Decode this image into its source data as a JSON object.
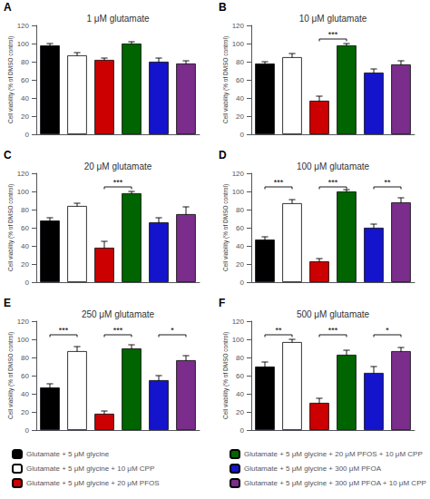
{
  "chart_data": [
    {
      "type": "bar",
      "title": "1 μM glutamate",
      "panel_label": "A",
      "ylabel": "Cell viability (% of DMSO control)",
      "ylim": [
        0,
        120
      ],
      "yticks": [
        0,
        20,
        40,
        60,
        80,
        100,
        120
      ],
      "grid": false,
      "tick_labels": "y",
      "series": [
        {
          "name": "Glutamate + 5 μM glycine",
          "color": "#000000",
          "values": [
            98
          ],
          "errors": [
            2
          ]
        },
        {
          "name": "Glutamate + 5 μM glycine + 10 μM CPP",
          "color": "#ffffff",
          "values": [
            87
          ],
          "errors": [
            3
          ]
        },
        {
          "name": "Glutamate + 5 μM glycine + 20 μM PFOS",
          "color": "#cc0000",
          "values": [
            82
          ],
          "errors": [
            2
          ]
        },
        {
          "name": "Glutamate + 5 μM glycine + 20 μM PFOS + 10 μM CPP",
          "color": "#006400",
          "values": [
            100
          ],
          "errors": [
            2
          ]
        },
        {
          "name": "Glutamate + 5 μM glycine + 300 μM PFOA",
          "color": "#1414cc",
          "values": [
            80
          ],
          "errors": [
            4
          ]
        },
        {
          "name": "Glutamate + 5 μM glycine + 300 μM PFOA + 10 μM CPP",
          "color": "#7b2d8b",
          "values": [
            78
          ],
          "errors": [
            3
          ]
        }
      ],
      "significance": []
    },
    {
      "type": "bar",
      "title": "10 μM glutamate",
      "panel_label": "B",
      "ylabel": "Cell viability (% of DMSO control)",
      "ylim": [
        0,
        120
      ],
      "yticks": [
        0,
        20,
        40,
        60,
        80,
        100,
        120
      ],
      "grid": false,
      "tick_labels": "y",
      "series": [
        {
          "name": "Glutamate + 5 μM glycine",
          "color": "#000000",
          "values": [
            78
          ],
          "errors": [
            2
          ]
        },
        {
          "name": "Glutamate + 5 μM glycine + 10 μM CPP",
          "color": "#ffffff",
          "values": [
            85
          ],
          "errors": [
            4
          ]
        },
        {
          "name": "Glutamate + 5 μM glycine + 20 μM PFOS",
          "color": "#cc0000",
          "values": [
            37
          ],
          "errors": [
            5
          ]
        },
        {
          "name": "Glutamate + 5 μM glycine + 20 μM PFOS + 10 μM CPP",
          "color": "#006400",
          "values": [
            98
          ],
          "errors": [
            2
          ]
        },
        {
          "name": "Glutamate + 5 μM glycine + 300 μM PFOA",
          "color": "#1414cc",
          "values": [
            68
          ],
          "errors": [
            4
          ]
        },
        {
          "name": "Glutamate + 5 μM glycine + 300 μM PFOA + 10 μM CPP",
          "color": "#7b2d8b",
          "values": [
            77
          ],
          "errors": [
            4
          ]
        }
      ],
      "significance": [
        {
          "bars": [
            2,
            3
          ],
          "text": "***",
          "y": 105
        }
      ]
    },
    {
      "type": "bar",
      "title": "20 μM glutamate",
      "panel_label": "C",
      "ylabel": "Cell viability (% of DMSO control)",
      "ylim": [
        0,
        120
      ],
      "yticks": [
        0,
        20,
        40,
        60,
        80,
        100,
        120
      ],
      "grid": false,
      "tick_labels": "y",
      "series": [
        {
          "name": "Glutamate + 5 μM glycine",
          "color": "#000000",
          "values": [
            68
          ],
          "errors": [
            3
          ]
        },
        {
          "name": "Glutamate + 5 μM glycine + 10 μM CPP",
          "color": "#ffffff",
          "values": [
            84
          ],
          "errors": [
            3
          ]
        },
        {
          "name": "Glutamate + 5 μM glycine + 20 μM PFOS",
          "color": "#cc0000",
          "values": [
            38
          ],
          "errors": [
            7
          ]
        },
        {
          "name": "Glutamate + 5 μM glycine + 20 μM PFOS + 10 μM CPP",
          "color": "#006400",
          "values": [
            98
          ],
          "errors": [
            2
          ]
        },
        {
          "name": "Glutamate + 5 μM glycine + 300 μM PFOA",
          "color": "#1414cc",
          "values": [
            66
          ],
          "errors": [
            5
          ]
        },
        {
          "name": "Glutamate + 5 μM glycine + 300 μM PFOA + 10 μM CPP",
          "color": "#7b2d8b",
          "values": [
            75
          ],
          "errors": [
            8
          ]
        }
      ],
      "significance": [
        {
          "bars": [
            2,
            3
          ],
          "text": "***",
          "y": 105
        }
      ]
    },
    {
      "type": "bar",
      "title": "100 μM glutamate",
      "panel_label": "D",
      "ylabel": "Cell viability (% of DMSO control)",
      "ylim": [
        0,
        120
      ],
      "yticks": [
        0,
        20,
        40,
        60,
        80,
        100,
        120
      ],
      "grid": false,
      "tick_labels": "y",
      "series": [
        {
          "name": "Glutamate + 5 μM glycine",
          "color": "#000000",
          "values": [
            47
          ],
          "errors": [
            3
          ]
        },
        {
          "name": "Glutamate + 5 μM glycine + 10 μM CPP",
          "color": "#ffffff",
          "values": [
            87
          ],
          "errors": [
            4
          ]
        },
        {
          "name": "Glutamate + 5 μM glycine + 20 μM PFOS",
          "color": "#cc0000",
          "values": [
            23
          ],
          "errors": [
            3
          ]
        },
        {
          "name": "Glutamate + 5 μM glycine + 20 μM PFOS + 10 μM CPP",
          "color": "#006400",
          "values": [
            100
          ],
          "errors": [
            2
          ]
        },
        {
          "name": "Glutamate + 5 μM glycine + 300 μM PFOA",
          "color": "#1414cc",
          "values": [
            60
          ],
          "errors": [
            4
          ]
        },
        {
          "name": "Glutamate + 5 μM glycine + 300 μM PFOA + 10 μM CPP",
          "color": "#7b2d8b",
          "values": [
            88
          ],
          "errors": [
            5
          ]
        }
      ],
      "significance": [
        {
          "bars": [
            0,
            1
          ],
          "text": "***",
          "y": 105
        },
        {
          "bars": [
            2,
            3
          ],
          "text": "***",
          "y": 105
        },
        {
          "bars": [
            4,
            5
          ],
          "text": "**",
          "y": 105
        }
      ]
    },
    {
      "type": "bar",
      "title": "250 μM glutamate",
      "panel_label": "E",
      "ylabel": "Cell viability (% of DMSO control)",
      "ylim": [
        0,
        120
      ],
      "yticks": [
        0,
        20,
        40,
        60,
        80,
        100,
        120
      ],
      "grid": false,
      "tick_labels": "y",
      "series": [
        {
          "name": "Glutamate + 5 μM glycine",
          "color": "#000000",
          "values": [
            47
          ],
          "errors": [
            4
          ]
        },
        {
          "name": "Glutamate + 5 μM glycine + 10 μM CPP",
          "color": "#ffffff",
          "values": [
            87
          ],
          "errors": [
            5
          ]
        },
        {
          "name": "Glutamate + 5 μM glycine + 20 μM PFOS",
          "color": "#cc0000",
          "values": [
            18
          ],
          "errors": [
            3
          ]
        },
        {
          "name": "Glutamate + 5 μM glycine + 20 μM PFOS + 10 μM CPP",
          "color": "#006400",
          "values": [
            90
          ],
          "errors": [
            4
          ]
        },
        {
          "name": "Glutamate + 5 μM glycine + 300 μM PFOA",
          "color": "#1414cc",
          "values": [
            55
          ],
          "errors": [
            5
          ]
        },
        {
          "name": "Glutamate + 5 μM glycine + 300 μM PFOA + 10 μM CPP",
          "color": "#7b2d8b",
          "values": [
            77
          ],
          "errors": [
            5
          ]
        }
      ],
      "significance": [
        {
          "bars": [
            0,
            1
          ],
          "text": "***",
          "y": 105
        },
        {
          "bars": [
            2,
            3
          ],
          "text": "***",
          "y": 105
        },
        {
          "bars": [
            4,
            5
          ],
          "text": "*",
          "y": 105
        }
      ]
    },
    {
      "type": "bar",
      "title": "500 μM glutamate",
      "panel_label": "F",
      "ylabel": "Cell viability (% of DMSO control)",
      "ylim": [
        0,
        120
      ],
      "yticks": [
        0,
        20,
        40,
        60,
        80,
        100,
        120
      ],
      "grid": false,
      "tick_labels": "y",
      "series": [
        {
          "name": "Glutamate + 5 μM glycine",
          "color": "#000000",
          "values": [
            70
          ],
          "errors": [
            5
          ]
        },
        {
          "name": "Glutamate + 5 μM glycine + 10 μM CPP",
          "color": "#ffffff",
          "values": [
            97
          ],
          "errors": [
            3
          ]
        },
        {
          "name": "Glutamate + 5 μM glycine + 20 μM PFOS",
          "color": "#cc0000",
          "values": [
            30
          ],
          "errors": [
            5
          ]
        },
        {
          "name": "Glutamate + 5 μM glycine + 20 μM PFOS + 10 μM CPP",
          "color": "#006400",
          "values": [
            83
          ],
          "errors": [
            5
          ]
        },
        {
          "name": "Glutamate + 5 μM glycine + 300 μM PFOA",
          "color": "#1414cc",
          "values": [
            63
          ],
          "errors": [
            7
          ]
        },
        {
          "name": "Glutamate + 5 μM glycine + 300 μM PFOA + 10 μM CPP",
          "color": "#7b2d8b",
          "values": [
            87
          ],
          "errors": [
            4
          ]
        }
      ],
      "significance": [
        {
          "bars": [
            0,
            1
          ],
          "text": "**",
          "y": 105
        },
        {
          "bars": [
            2,
            3
          ],
          "text": "***",
          "y": 105
        },
        {
          "bars": [
            4,
            5
          ],
          "text": "*",
          "y": 105
        }
      ]
    }
  ]
}
